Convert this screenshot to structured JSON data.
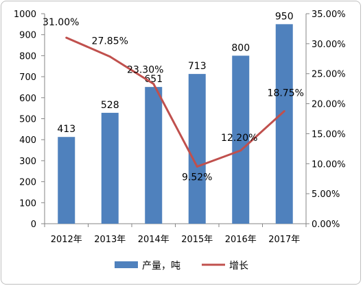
{
  "chart_data": {
    "type": "bar+line",
    "categories": [
      "2012年",
      "2013年",
      "2014年",
      "2015年",
      "2016年",
      "2017年"
    ],
    "series": [
      {
        "name": "产量，吨",
        "type": "bar",
        "axis": "left",
        "color": "#4f81bd",
        "values": [
          413,
          528,
          651,
          713,
          800,
          950
        ],
        "labels": [
          "413",
          "528",
          "651",
          "713",
          "800",
          "950"
        ]
      },
      {
        "name": "增长",
        "type": "line",
        "axis": "right",
        "color": "#c0504d",
        "values": [
          31.0,
          27.85,
          23.3,
          9.52,
          12.2,
          18.75
        ],
        "labels": [
          "31.00%",
          "27.85%",
          "23.30%",
          "9.52%",
          "12.20%",
          "18.75%"
        ]
      }
    ],
    "y_left": {
      "min": 0,
      "max": 1000,
      "ticks": [
        "0",
        "100",
        "200",
        "300",
        "400",
        "500",
        "600",
        "700",
        "800",
        "900",
        "1000"
      ]
    },
    "y_right": {
      "min": 0,
      "max": 35,
      "ticks": [
        "0.00%",
        "5.00%",
        "10.00%",
        "15.00%",
        "20.00%",
        "25.00%",
        "30.00%",
        "35.00%"
      ]
    },
    "grid": false,
    "legend": "bottom"
  }
}
